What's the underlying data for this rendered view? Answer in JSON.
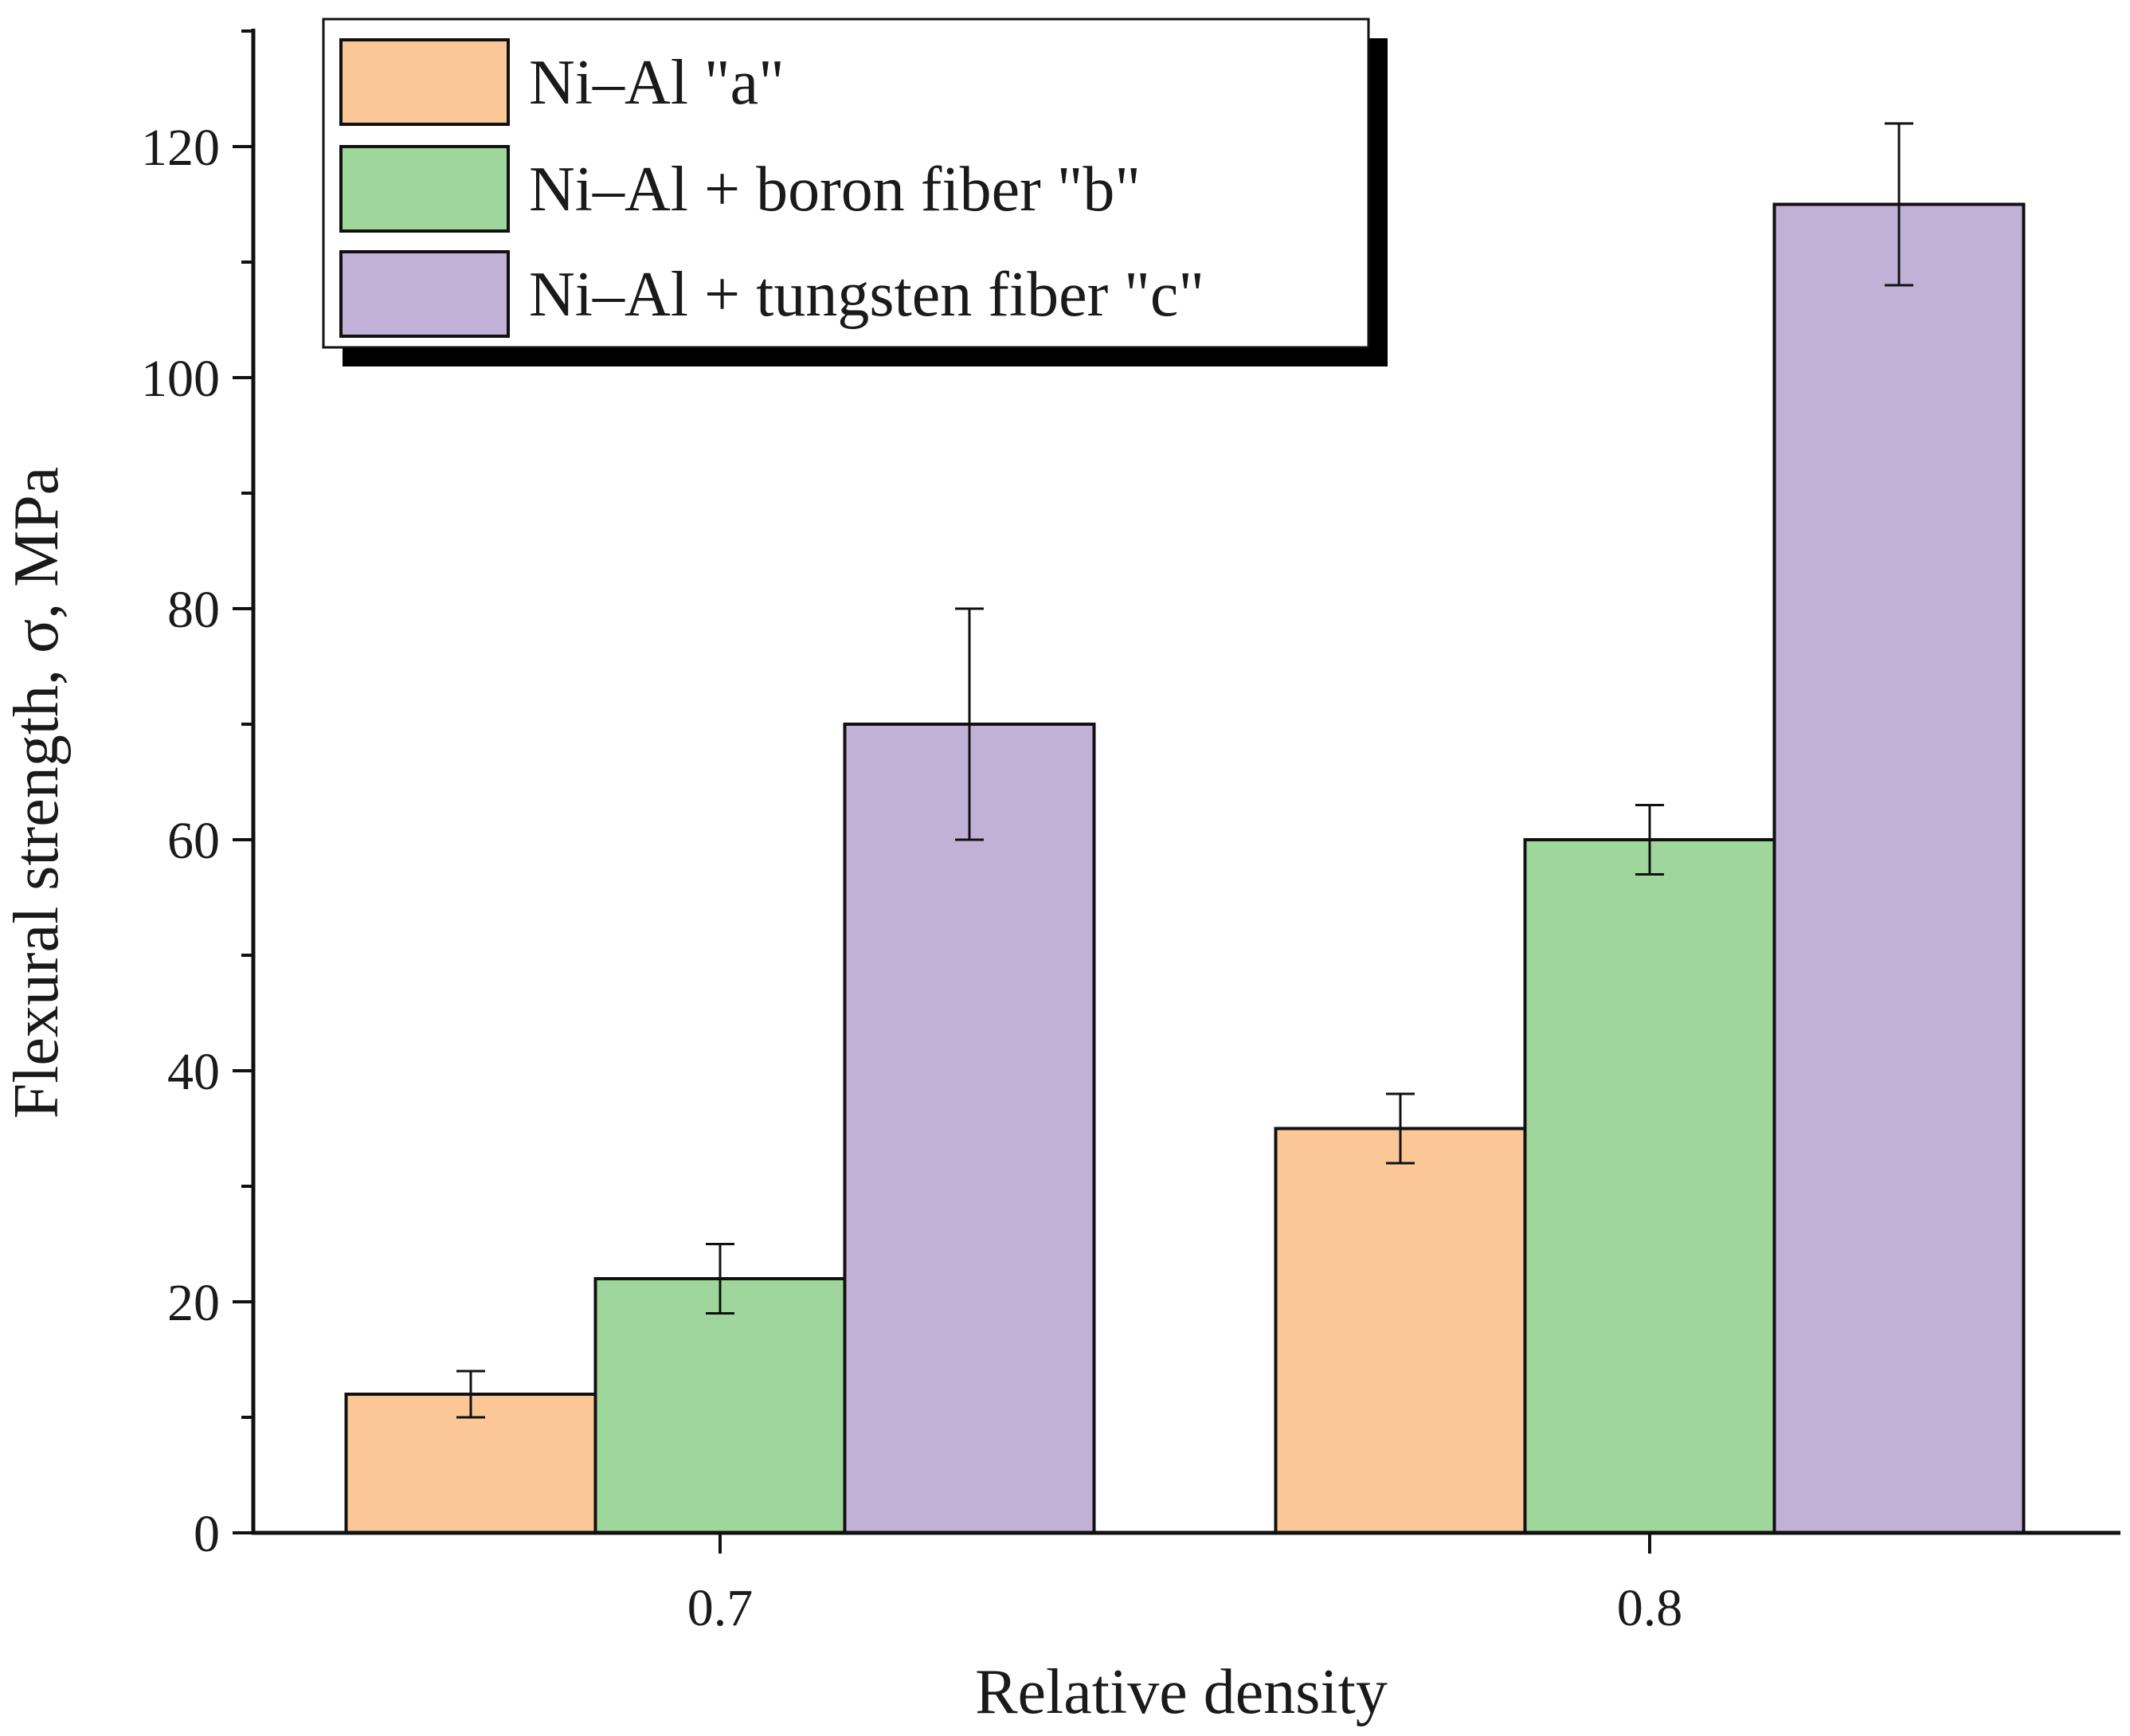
{
  "chart_data": {
    "type": "bar",
    "title": "",
    "xlabel": "Relative density",
    "ylabel": "Flexural strength, σ, MPa",
    "categories": [
      "0.7",
      "0.8"
    ],
    "ylim": [
      0,
      130
    ],
    "yticks": [
      0,
      20,
      40,
      60,
      80,
      100,
      120
    ],
    "minor_tick_step": 10,
    "grid": false,
    "legend_position": "top-left",
    "series": [
      {
        "name": "Ni–Al \"a\"",
        "color": "#fbc797",
        "values": [
          12,
          35
        ],
        "errors": [
          2,
          3
        ]
      },
      {
        "name": "Ni–Al + boron fiber \"b\"",
        "color": "#9fd69c",
        "values": [
          22,
          60
        ],
        "errors": [
          3,
          3
        ]
      },
      {
        "name": "Ni–Al + tungsten fiber \"c\"",
        "color": "#c2b1d6",
        "values": [
          70,
          115
        ],
        "errors": [
          10,
          7
        ]
      }
    ]
  }
}
